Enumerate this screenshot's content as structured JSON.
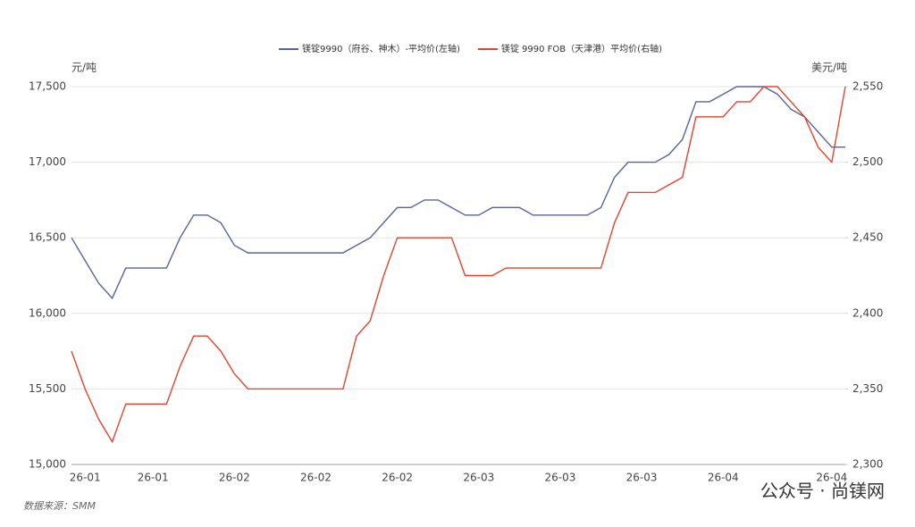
{
  "chart_data": {
    "type": "line",
    "y_label": "元/吨",
    "y2_label": "美元/吨",
    "source": "数据来源：SMM",
    "watermark": "公众号 · 尚镁网",
    "categories": [
      null,
      "26-01",
      null,
      null,
      null,
      null,
      "26-01",
      null,
      null,
      null,
      null,
      null,
      "26-02",
      null,
      null,
      null,
      null,
      null,
      "26-02",
      null,
      null,
      null,
      null,
      null,
      "26-02",
      null,
      null,
      null,
      null,
      null,
      "26-03",
      null,
      null,
      null,
      null,
      null,
      "26-03",
      null,
      null,
      null,
      null,
      null,
      "26-03",
      null,
      null,
      null,
      null,
      null,
      "26-04",
      null,
      null,
      null,
      null,
      null,
      null,
      null,
      "26-04",
      null
    ],
    "ylim": [
      15000,
      17500
    ],
    "yticks": [
      {
        "value": 15000,
        "label": "15,000"
      },
      {
        "value": 15500,
        "label": "15,500"
      },
      {
        "value": 16000,
        "label": "16,000"
      },
      {
        "value": 16500,
        "label": "16,500"
      },
      {
        "value": 17000,
        "label": "17,000"
      },
      {
        "value": 17500,
        "label": "17,500"
      }
    ],
    "y2lim": [
      2300,
      2550
    ],
    "y2ticks": [
      {
        "value": 2300,
        "label": "2,300"
      },
      {
        "value": 2350,
        "label": "2,350"
      },
      {
        "value": 2400,
        "label": "2,400"
      },
      {
        "value": 2450,
        "label": "2,450"
      },
      {
        "value": 2500,
        "label": "2,500"
      },
      {
        "value": 2550,
        "label": "2,550"
      }
    ],
    "grid": true,
    "legend": "top",
    "series": [
      {
        "name": "镁锭9990（府谷、神木）-平均价(左轴)",
        "color": "#5a6398",
        "axis": "y",
        "values": [
          16500,
          16350,
          16200,
          16100,
          16300,
          16300,
          16300,
          16300,
          16500,
          16650,
          16650,
          16600,
          16450,
          16400,
          16400,
          16400,
          16400,
          16400,
          16400,
          16400,
          16400,
          16450,
          16500,
          16600,
          16700,
          16700,
          16750,
          16750,
          16700,
          16650,
          16650,
          16700,
          16700,
          16700,
          16650,
          16650,
          16650,
          16650,
          16650,
          16700,
          16900,
          17000,
          17000,
          17000,
          17050,
          17150,
          17400,
          17400,
          17450,
          17500,
          17500,
          17500,
          17450,
          17350,
          17300,
          17200,
          17100,
          17100
        ]
      },
      {
        "name": "镁锭 9990 FOB（天津港）平均价(右轴)",
        "color": "#e4432d",
        "axis": "y2",
        "values": [
          2375,
          2350,
          2330,
          2315,
          2340,
          2340,
          2340,
          2340,
          2365,
          2385,
          2385,
          2375,
          2360,
          2350,
          2350,
          2350,
          2350,
          2350,
          2350,
          2350,
          2350,
          2385,
          2395,
          2425,
          2450,
          2450,
          2450,
          2450,
          2450,
          2425,
          2425,
          2425,
          2430,
          2430,
          2430,
          2430,
          2430,
          2430,
          2430,
          2430,
          2460,
          2480,
          2480,
          2480,
          2485,
          2490,
          2530,
          2530,
          2530,
          2540,
          2540,
          2550,
          2550,
          2540,
          2530,
          2510,
          2500,
          2550
        ]
      }
    ]
  }
}
